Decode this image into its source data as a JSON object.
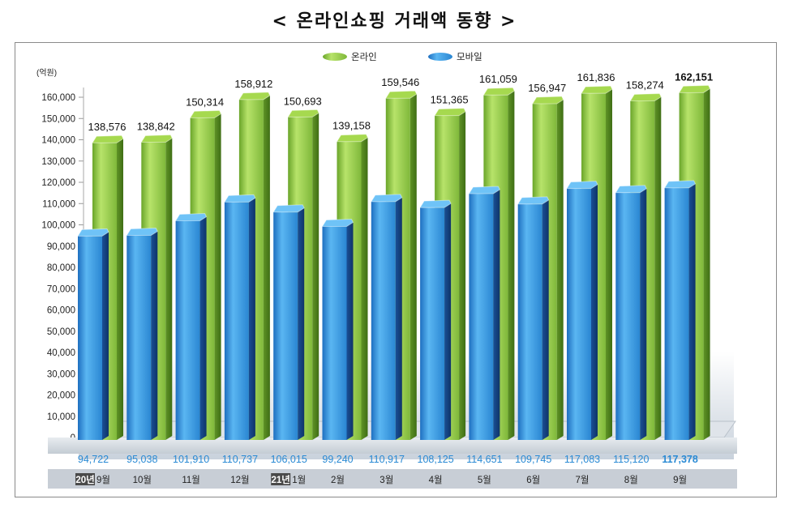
{
  "title": "< 온라인쇼핑 거래액 동향 >",
  "colors": {
    "online": "#8dc63f",
    "mobile": "#2f8fd8",
    "mobile_label": "#2a8ad4",
    "year_badge_bg": "#4a4a4a"
  },
  "chart_data": {
    "type": "bar",
    "title": "< 온라인쇼핑 거래액 동향 >",
    "ylabel": "(억원)",
    "xlabel": "",
    "ylim": [
      0,
      160000
    ],
    "yticks": [
      "0",
      "10,000",
      "20,000",
      "30,000",
      "40,000",
      "50,000",
      "60,000",
      "70,000",
      "80,000",
      "90,000",
      "100,000",
      "110,000",
      "120,000",
      "130,000",
      "140,000",
      "150,000",
      "160,000"
    ],
    "legend": [
      "온라인",
      "모바일"
    ],
    "legend_position": "top-center",
    "categories": [
      {
        "year": "20년",
        "month": "9월"
      },
      {
        "year": "",
        "month": "10월"
      },
      {
        "year": "",
        "month": "11월"
      },
      {
        "year": "",
        "month": "12월"
      },
      {
        "year": "21년",
        "month": "1월"
      },
      {
        "year": "",
        "month": "2월"
      },
      {
        "year": "",
        "month": "3월"
      },
      {
        "year": "",
        "month": "4월"
      },
      {
        "year": "",
        "month": "5월"
      },
      {
        "year": "",
        "month": "6월"
      },
      {
        "year": "",
        "month": "7월"
      },
      {
        "year": "",
        "month": "8월"
      },
      {
        "year": "",
        "month": "9월"
      }
    ],
    "series": [
      {
        "name": "온라인",
        "values": [
          138576,
          138842,
          150314,
          158912,
          150693,
          139158,
          159546,
          151365,
          161059,
          156947,
          161836,
          158274,
          162151
        ],
        "labels": [
          "138,576",
          "138,842",
          "150,314",
          "158,912",
          "150,693",
          "139,158",
          "159,546",
          "151,365",
          "161,059",
          "156,947",
          "161,836",
          "158,274",
          "162,151"
        ]
      },
      {
        "name": "모바일",
        "values": [
          94722,
          95038,
          101910,
          110737,
          106015,
          99240,
          110917,
          108125,
          114651,
          109745,
          117083,
          115120,
          117378
        ],
        "labels": [
          "94,722",
          "95,038",
          "101,910",
          "110,737",
          "106,015",
          "99,240",
          "110,917",
          "108,125",
          "114,651",
          "109,745",
          "117,083",
          "115,120",
          "117,378"
        ]
      }
    ]
  }
}
